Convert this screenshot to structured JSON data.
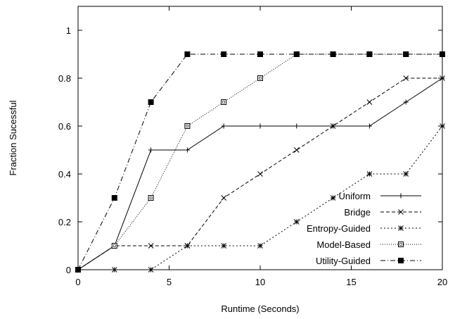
{
  "chart_data": {
    "type": "line",
    "title": "",
    "xlabel": "Runtime (Seconds)",
    "ylabel": "Fraction Sucessful",
    "xlim": [
      0,
      20
    ],
    "ylim": [
      0,
      1.1
    ],
    "xticks": [
      0,
      5,
      10,
      15,
      20
    ],
    "yticks": [
      0,
      0.2,
      0.4,
      0.6,
      0.8,
      1
    ],
    "xtick_labels": [
      "0",
      "5",
      "10",
      "15",
      "20"
    ],
    "ytick_labels": [
      "0",
      "0.2",
      "0.4",
      "0.6",
      "0.8",
      "1"
    ],
    "grid": false,
    "legend_position": "bottom-right",
    "series": [
      {
        "name": "Uniform",
        "marker": "plus",
        "dash": "none",
        "x": [
          0,
          2,
          4,
          6,
          8,
          10,
          12,
          14,
          16,
          18,
          20
        ],
        "y": [
          0,
          0.1,
          0.5,
          0.5,
          0.6,
          0.6,
          0.6,
          0.6,
          0.6,
          0.7,
          0.8
        ]
      },
      {
        "name": "Bridge",
        "marker": "cross",
        "dash": "dashed",
        "x": [
          0,
          2,
          4,
          6,
          8,
          10,
          12,
          14,
          16,
          18,
          20
        ],
        "y": [
          0,
          0.1,
          0.1,
          0.1,
          0.3,
          0.4,
          0.5,
          0.6,
          0.7,
          0.8,
          0.8
        ]
      },
      {
        "name": "Entropy-Guided",
        "marker": "star",
        "dash": "dotted",
        "x": [
          0,
          2,
          4,
          6,
          8,
          10,
          12,
          14,
          16,
          18,
          20
        ],
        "y": [
          0,
          0,
          0,
          0.1,
          0.1,
          0.1,
          0.2,
          0.3,
          0.4,
          0.4,
          0.6
        ]
      },
      {
        "name": "Model-Based",
        "marker": "open-square",
        "dash": "fine-dotted",
        "x": [
          0,
          2,
          4,
          6,
          8,
          10,
          12,
          14,
          16,
          18,
          20
        ],
        "y": [
          0,
          0.1,
          0.3,
          0.6,
          0.7,
          0.8,
          0.9,
          0.9,
          0.9,
          0.9,
          0.9
        ]
      },
      {
        "name": "Utility-Guided",
        "marker": "filled-square",
        "dash": "dash-dot",
        "x": [
          0,
          2,
          4,
          6,
          8,
          10,
          12,
          14,
          16,
          18,
          20
        ],
        "y": [
          0,
          0.3,
          0.7,
          0.9,
          0.9,
          0.9,
          0.9,
          0.9,
          0.9,
          0.9,
          0.9
        ]
      }
    ]
  }
}
